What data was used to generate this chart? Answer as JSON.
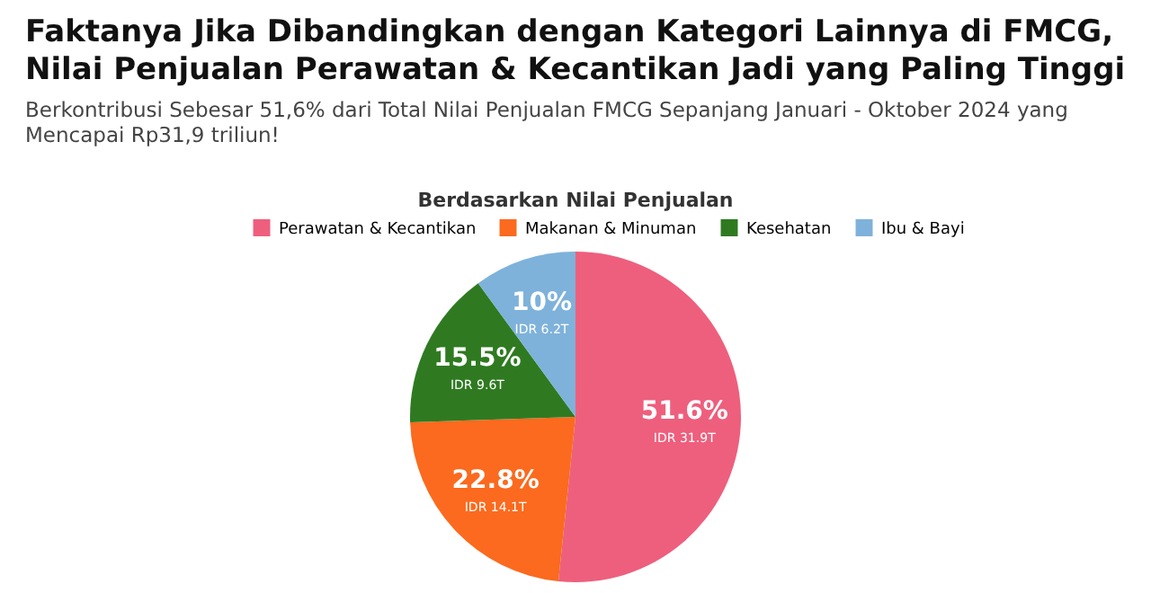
{
  "chart_data": {
    "type": "pie",
    "title": "Berdasarkan Nilai Penjualan",
    "annotations": [
      "Faktanya Jika Dibandingkan dengan Kategori Lainnya di FMCG, Nilai Penjualan Perawatan & Kecantikan Jadi yang Paling Tinggi",
      "Berkontribusi Sebesar 51,6% dari Total Nilai Penjualan FMCG Sepanjang Januari - Oktober 2024 yang Mencapai Rp31,9 triliun!"
    ],
    "categories": [
      "Perawatan & Kecantikan",
      "Makanan & Minuman",
      "Kesehatan",
      "Ibu & Bayi"
    ],
    "values": [
      51.6,
      22.8,
      15.5,
      10
    ],
    "colors": [
      "#ee5f7d",
      "#fb6a1e",
      "#2f7a21",
      "#7eb2da"
    ],
    "value_labels": [
      "51.6%\nIDR 31.9T",
      "22.8%\nIDR 14.1T",
      "15.5%\nIDR 9.6T",
      "10%\nIDR 6.2T"
    ],
    "legend": "top"
  }
}
